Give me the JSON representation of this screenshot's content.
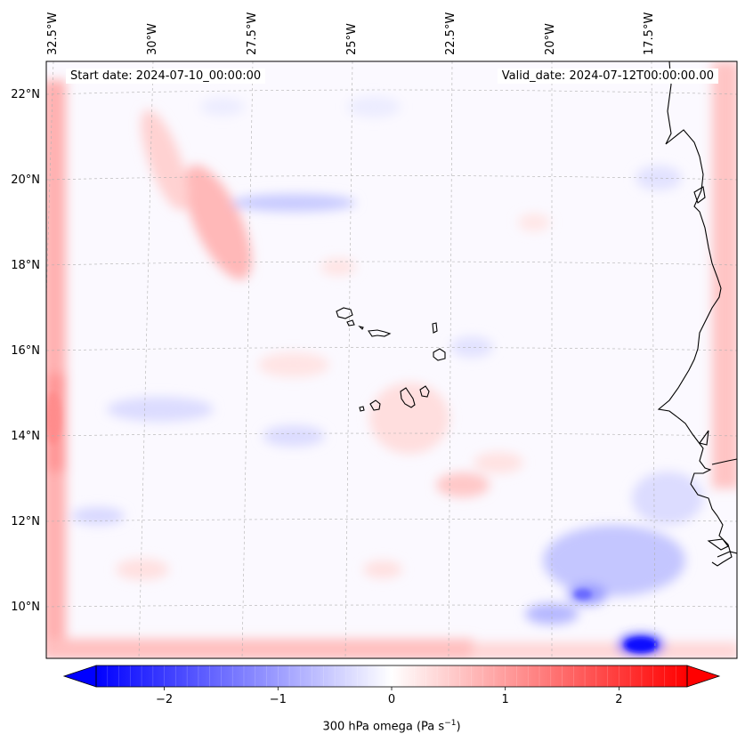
{
  "map": {
    "variable": "300 hPa omega",
    "units_base": "Pa s",
    "units_exp": "−1",
    "start_date_text": "Start date: 2024-07-10_00:00:00",
    "valid_date_text": "Valid_date: 2024-07-12T00:00:00.00",
    "lat_labels": [
      "22°N",
      "20°N",
      "18°N",
      "16°N",
      "14°N",
      "12°N",
      "10°N"
    ],
    "lon_labels": [
      "32.5°W",
      "30°W",
      "27.5°W",
      "25°W",
      "22.5°W",
      "20°W",
      "17.5°W"
    ],
    "colorbar": {
      "min": -2.6,
      "max": 2.6,
      "ticks": [
        "−2",
        "−1",
        "0",
        "1",
        "2"
      ],
      "tick_values": [
        -2,
        -1,
        0,
        1,
        2
      ],
      "colormap": "bwr",
      "extend": "both",
      "colors": {
        "negative": "#0000ff",
        "zero": "#ffffff",
        "positive": "#ff0000"
      }
    },
    "features": [
      "cabo-verde-islands",
      "west-africa-coastline",
      "gridlines"
    ],
    "colors": {
      "coastline": "#000000",
      "gridline": "#b0b0b0"
    }
  }
}
